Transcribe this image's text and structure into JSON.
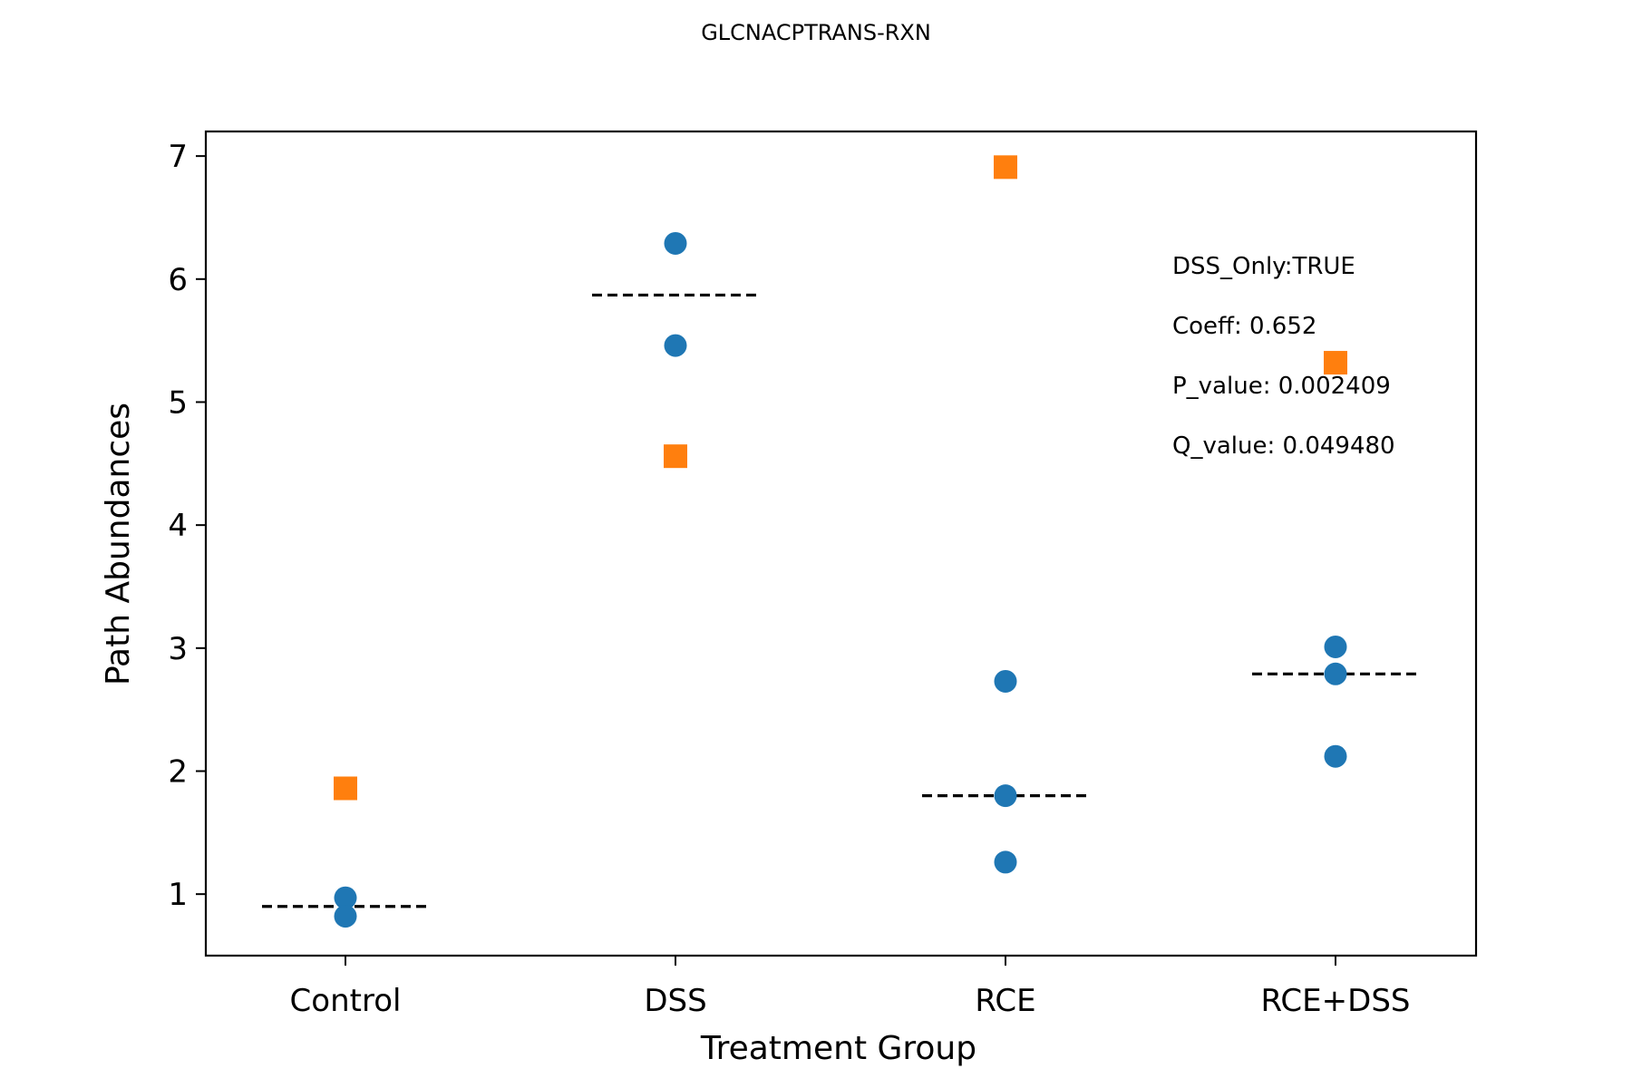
{
  "chart_data": {
    "type": "scatter",
    "title": "GLCNACPTRANS-RXN",
    "xlabel": "Treatment Group",
    "ylabel": "Path Abundances",
    "categories": [
      "Control",
      "DSS",
      "RCE",
      "RCE+DSS"
    ],
    "ylim": [
      0.5,
      7.2
    ],
    "yticks": [
      1,
      2,
      3,
      4,
      5,
      6,
      7
    ],
    "grid": false,
    "series": [
      {
        "marker": "circle",
        "color": "#1f77b4",
        "points": [
          {
            "category": "Control",
            "y": 0.97
          },
          {
            "category": "Control",
            "y": 0.82
          },
          {
            "category": "DSS",
            "y": 6.29
          },
          {
            "category": "DSS",
            "y": 5.46
          },
          {
            "category": "RCE",
            "y": 2.73
          },
          {
            "category": "RCE",
            "y": 1.8
          },
          {
            "category": "RCE",
            "y": 1.26
          },
          {
            "category": "RCE+DSS",
            "y": 3.01
          },
          {
            "category": "RCE+DSS",
            "y": 2.79
          },
          {
            "category": "RCE+DSS",
            "y": 2.12
          }
        ]
      },
      {
        "marker": "square",
        "color": "#ff7f0e",
        "points": [
          {
            "category": "Control",
            "y": 1.86
          },
          {
            "category": "DSS",
            "y": 4.56
          },
          {
            "category": "RCE",
            "y": 6.91
          },
          {
            "category": "RCE+DSS",
            "y": 5.32
          }
        ]
      }
    ],
    "median_lines": {
      "style": "dashed",
      "color": "#000000",
      "values": [
        {
          "category": "Control",
          "y": 0.9
        },
        {
          "category": "DSS",
          "y": 5.87
        },
        {
          "category": "RCE",
          "y": 1.8
        },
        {
          "category": "RCE+DSS",
          "y": 2.79
        }
      ]
    },
    "annotations": [
      "DSS_Only:TRUE",
      "Coeff: 0.652",
      "P_value: 0.002409",
      "Q_value: 0.049480"
    ],
    "annotation_position": "top-right"
  }
}
